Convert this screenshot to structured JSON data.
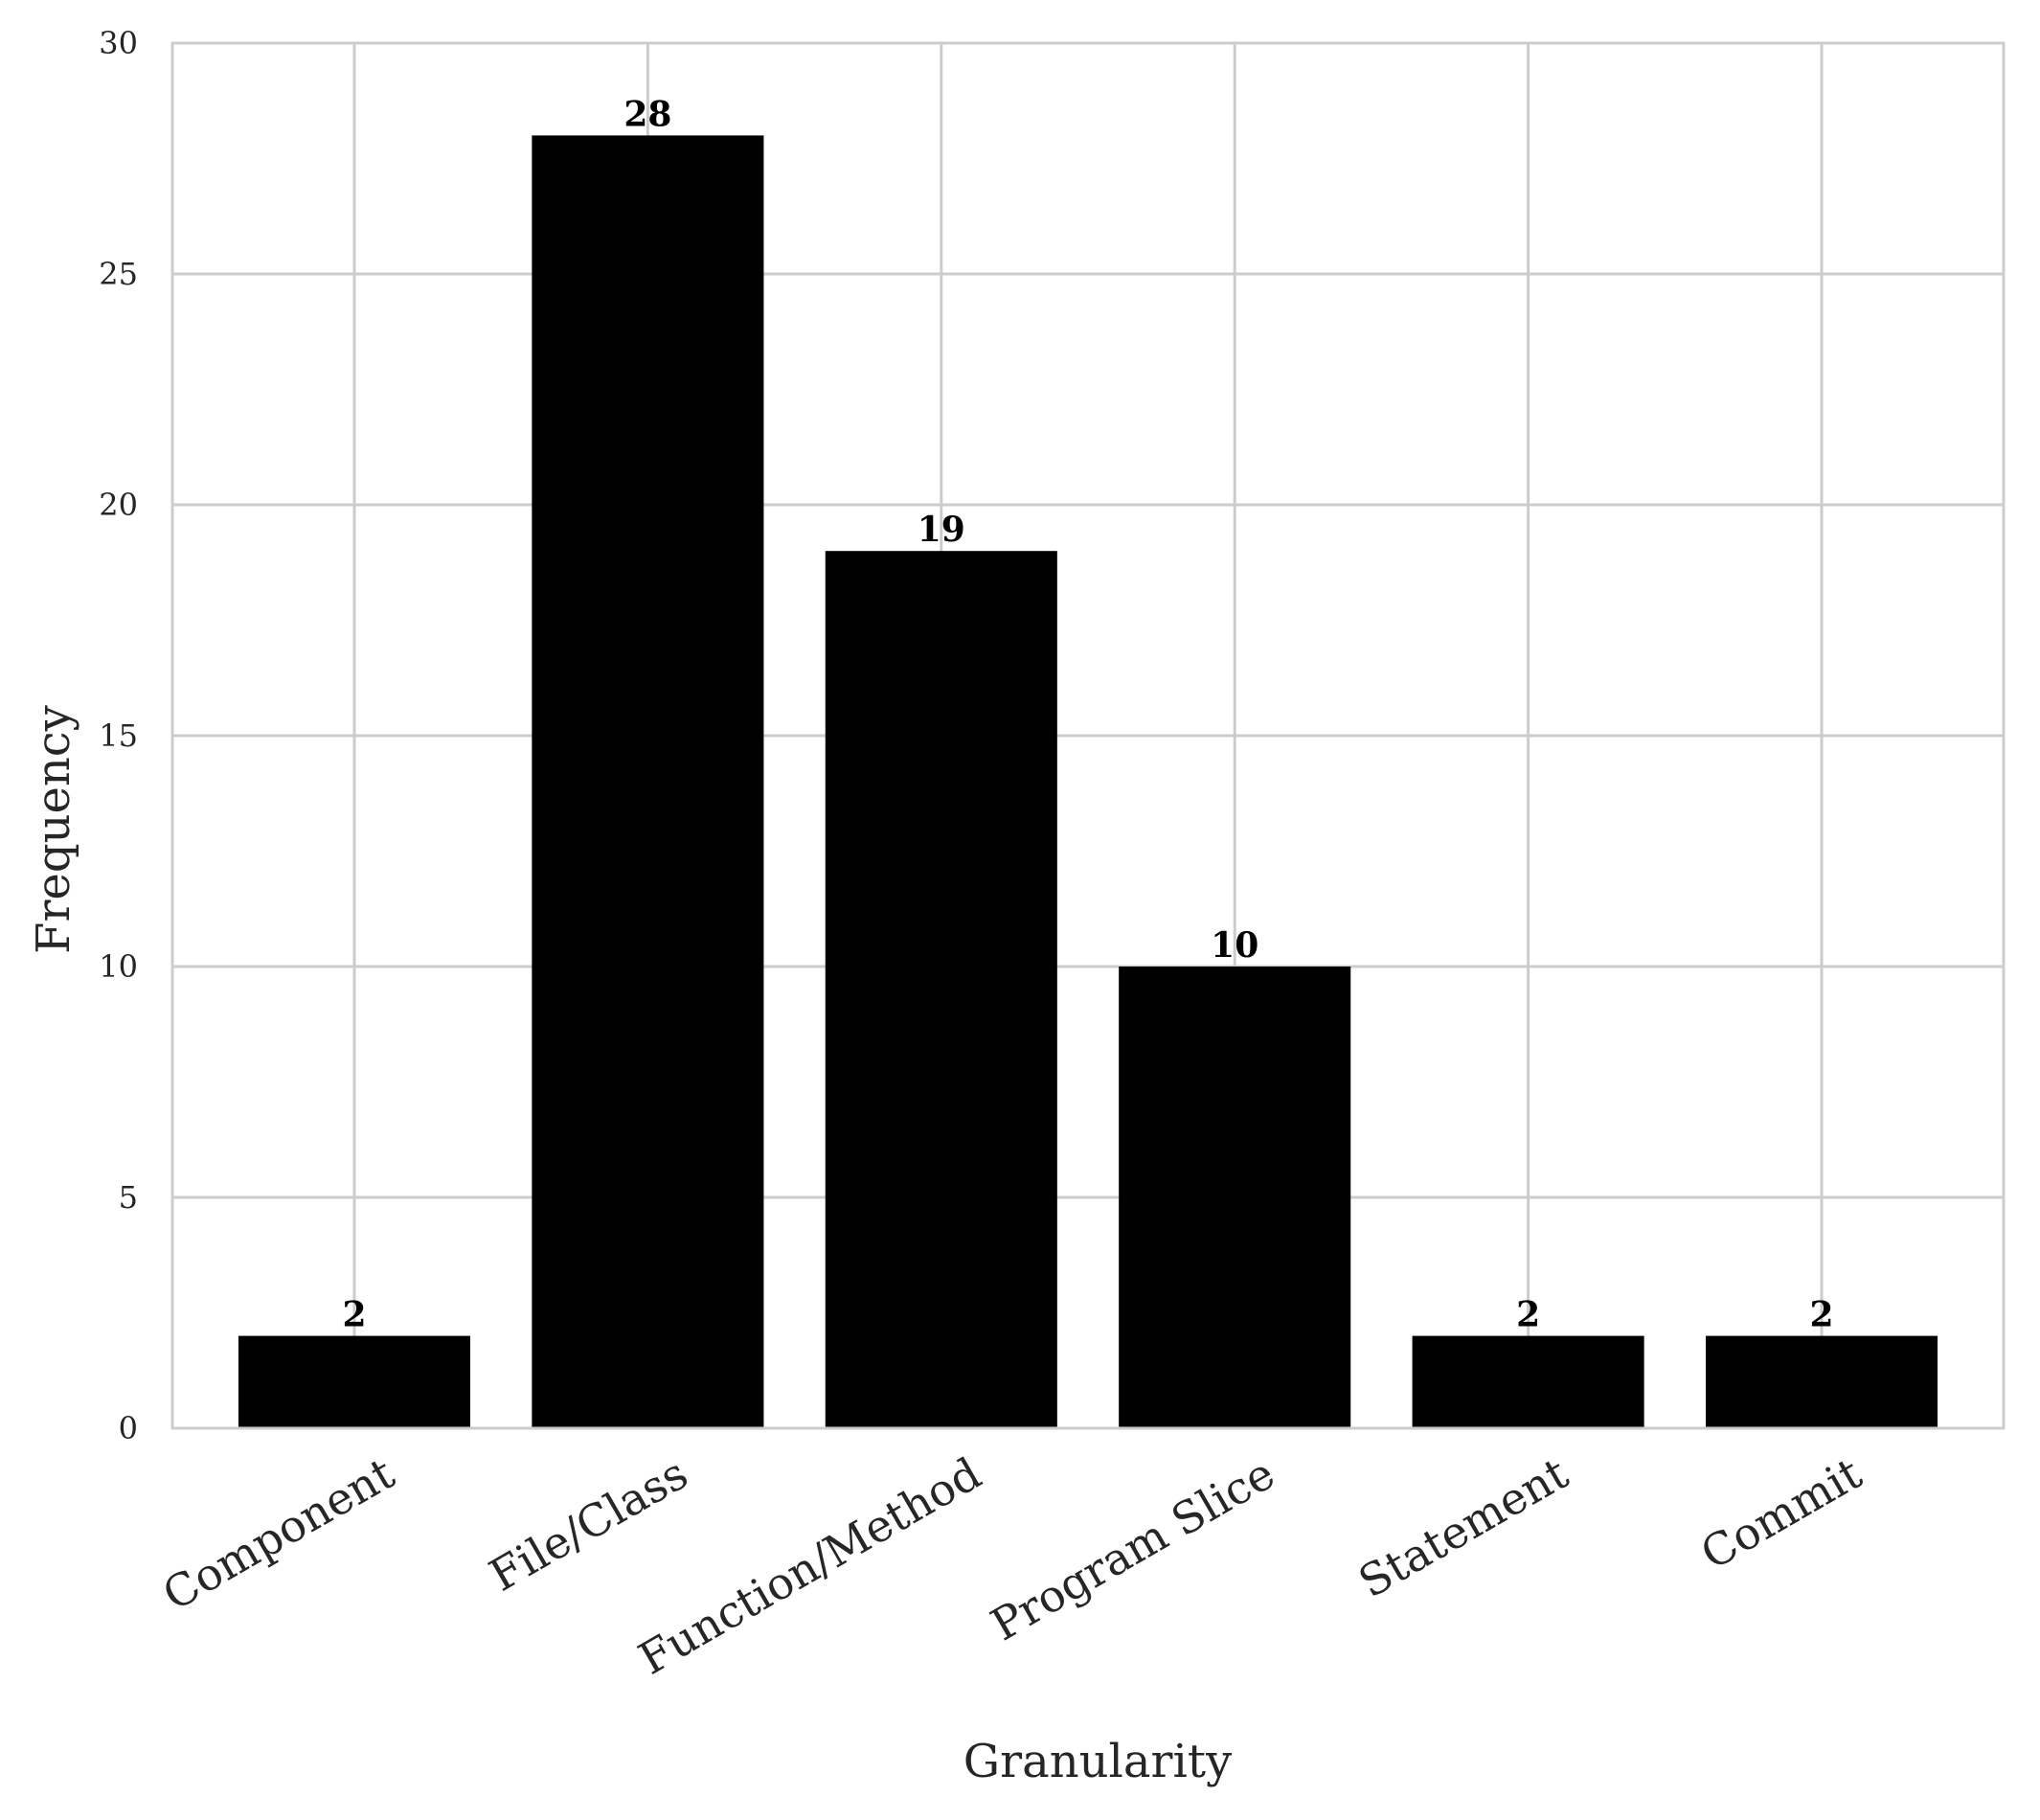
{
  "chart_data": {
    "type": "bar",
    "title": "",
    "xlabel": "Granularity",
    "ylabel": "Frequency",
    "categories": [
      "Component",
      "File/Class",
      "Function/Method",
      "Program Slice",
      "Statement",
      "Commit"
    ],
    "values": [
      2,
      28,
      19,
      10,
      2,
      2
    ],
    "ylim": [
      0,
      30
    ],
    "yticks": [
      0,
      5,
      10,
      15,
      20,
      25,
      30
    ],
    "grid": true,
    "legend": "none",
    "bar_color": "#000000",
    "grid_color": "#cccccc",
    "data_labels": true
  }
}
